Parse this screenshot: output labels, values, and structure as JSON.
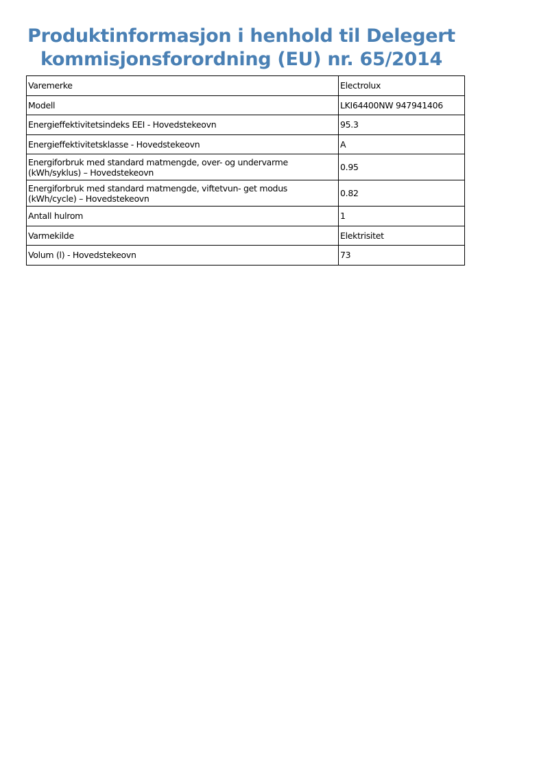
{
  "title": {
    "line1": "Produktinformasjon i henhold til Delegert",
    "line2": "kommisjonsforordning (EU) nr. 65/2014"
  },
  "table": {
    "rows": [
      {
        "label": "Varemerke",
        "value": "Electrolux"
      },
      {
        "label": "Modell",
        "value": "LKI64400NW 947941406"
      },
      {
        "label": "Energieffektivitetsindeks EEI - Hovedstekeovn",
        "value": "95.3"
      },
      {
        "label": "Energieffektivitetsklasse - Hovedstekeovn",
        "value": "A"
      },
      {
        "label": "Energiforbruk med standard matmengde, over- og undervarme",
        "label2": "(kWh/syklus) – Hovedstekeovn",
        "value": "0.95"
      },
      {
        "label": "Energiforbruk med standard matmengde, viftetvun- get modus",
        "label2": "(kWh/cycle) – Hovedstekeovn",
        "value": "0.82"
      },
      {
        "label": "Antall hulrom",
        "value": "1"
      },
      {
        "label": "Varmekilde",
        "value": "Elektrisitet"
      },
      {
        "label": "Volum (l) - Hovedstekeovn",
        "value": "73"
      }
    ]
  },
  "colors": {
    "title": "#4a80b4"
  }
}
